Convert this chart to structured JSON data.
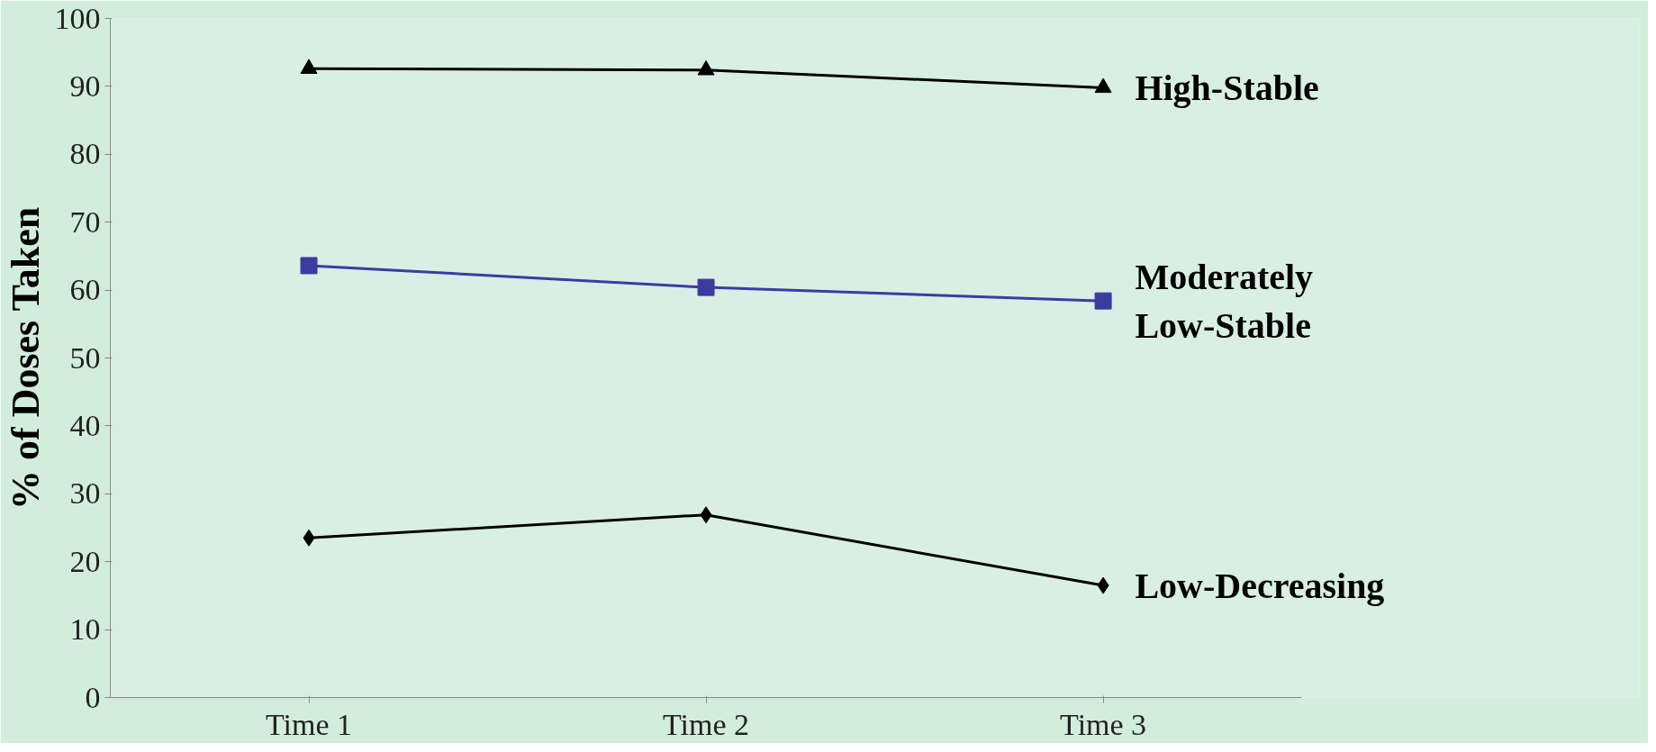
{
  "chart_data": {
    "type": "line",
    "ylabel": "% of Doses Taken",
    "categories": [
      "Time 1",
      "Time 2",
      "Time 3"
    ],
    "series": [
      {
        "name": "High-Stable",
        "color": "#000000",
        "marker": "triangle",
        "values": [
          92.6,
          92.4,
          89.8
        ]
      },
      {
        "name": "Moderately\nLow-Stable",
        "color": "#3b3ba0",
        "marker": "square",
        "values": [
          63.6,
          60.4,
          58.4
        ]
      },
      {
        "name": "Low-Decreasing",
        "color": "#000000",
        "marker": "diamond",
        "values": [
          23.5,
          26.9,
          16.5
        ]
      }
    ],
    "ylim": [
      0,
      100
    ],
    "yticks": [
      0,
      10,
      20,
      30,
      40,
      50,
      60,
      70,
      80,
      90,
      100
    ],
    "grid": false
  }
}
